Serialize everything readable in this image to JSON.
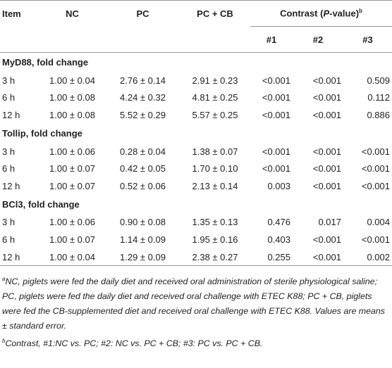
{
  "header": {
    "item": "Item",
    "nc": "NC",
    "pc": "PC",
    "pccb": "PC + CB",
    "contrast": {
      "before": "Contrast (",
      "italic": "P",
      "after": "-value)",
      "sup": "b"
    },
    "sub": [
      "#1",
      "#2",
      "#3"
    ]
  },
  "sections": [
    {
      "title": "MyD88, fold change",
      "rows": [
        [
          "3 h",
          "1.00 ± 0.04",
          "2.76 ± 0.14",
          "2.91 ± 0.23",
          "<0.001",
          "<0.001",
          "0.509"
        ],
        [
          "6 h",
          "1.00 ± 0.08",
          "4.24 ± 0.32",
          "4.81 ± 0.25",
          "<0.001",
          "<0.001",
          "0.112"
        ],
        [
          "12 h",
          "1.00 ± 0.08",
          "5.52 ± 0.29",
          "5.57 ± 0.25",
          "<0.001",
          "<0.001",
          "0.886"
        ]
      ]
    },
    {
      "title": "Tollip, fold change",
      "rows": [
        [
          "3 h",
          "1.00 ± 0.06",
          "0.28 ± 0.04",
          "1.38 ± 0.07",
          "<0.001",
          "<0.001",
          "<0.001"
        ],
        [
          "6 h",
          "1.00 ± 0.07",
          "0.42 ± 0.05",
          "1.70 ± 0.10",
          "<0.001",
          "<0.001",
          "<0.001"
        ],
        [
          "12 h",
          "1.00 ± 0.07",
          "0.52 ± 0.06",
          "2.13 ± 0.14",
          "0.003",
          "<0.001",
          "<0.001"
        ]
      ]
    },
    {
      "title": "BCl3, fold change",
      "rows": [
        [
          "3 h",
          "1.00 ± 0.06",
          "0.90 ± 0.08",
          "1.35 ± 0.13",
          "0.476",
          "0.017",
          "0.004"
        ],
        [
          "6 h",
          "1.00 ± 0.07",
          "1.14 ± 0.09",
          "1.95 ± 0.16",
          "0.403",
          "<0.001",
          "<0.001"
        ],
        [
          "12 h",
          "1.00 ± 0.04",
          "1.29 ± 0.09",
          "2.38 ± 0.27",
          "0.255",
          "<0.001",
          "0.002"
        ]
      ]
    }
  ],
  "footnotes": [
    {
      "mark": "a",
      "text": "NC, piglets were fed the daily diet and received oral administration of sterile physiological saline; PC, piglets were fed the daily diet and received oral challenge with ETEC K88; PC + CB, piglets were fed the CB-supplemented diet and received oral challenge with ETEC K88. Values are means ± standard error."
    },
    {
      "mark": "b",
      "text": "Contrast, #1:NC vs. PC; #2: NC vs. PC + CB; #3: PC vs. PC + CB."
    }
  ]
}
